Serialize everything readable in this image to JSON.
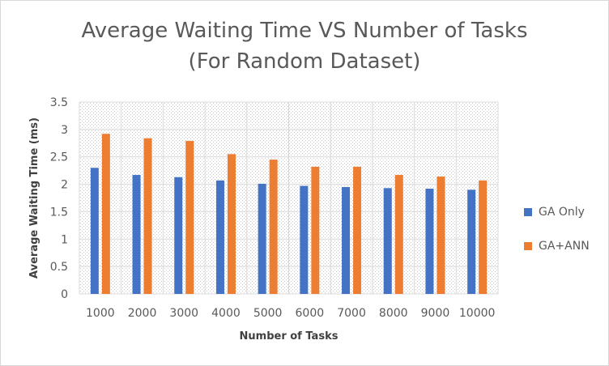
{
  "chart_data": {
    "type": "bar",
    "title": "Average Waiting Time VS Number of Tasks\n(For Random Dataset)",
    "xlabel": "Number of Tasks",
    "ylabel": "Average Waiting Time (ms)",
    "categories": [
      "1000",
      "2000",
      "3000",
      "4000",
      "5000",
      "6000",
      "7000",
      "8000",
      "9000",
      "10000"
    ],
    "ylim": [
      0,
      3.5
    ],
    "yticks": [
      "0",
      "0.5",
      "1",
      "1.5",
      "2",
      "2.5",
      "3",
      "3.5"
    ],
    "grid": true,
    "legend_position": "right",
    "series": [
      {
        "name": "GA Only",
        "color": "#4472c4",
        "values": [
          2.3,
          2.17,
          2.13,
          2.07,
          2.01,
          1.97,
          1.95,
          1.93,
          1.92,
          1.9
        ]
      },
      {
        "name": "GA+ANN",
        "color": "#ed7d31",
        "values": [
          2.92,
          2.84,
          2.79,
          2.55,
          2.45,
          2.32,
          2.32,
          2.17,
          2.14,
          2.07
        ]
      }
    ]
  }
}
